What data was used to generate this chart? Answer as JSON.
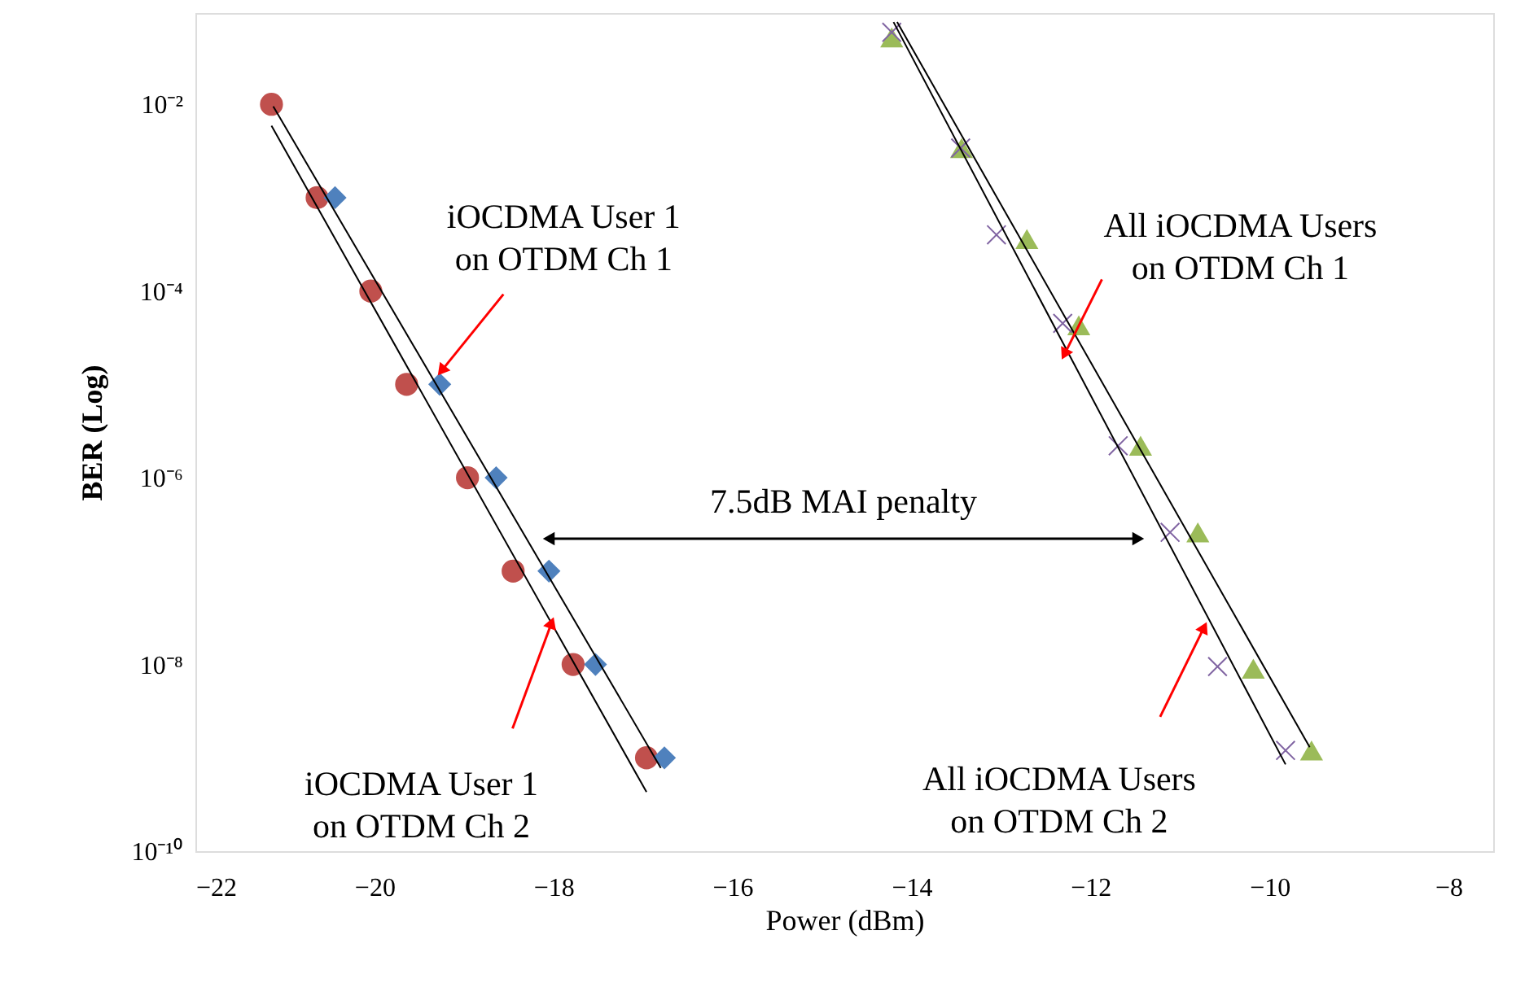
{
  "chart_data": {
    "type": "scatter",
    "xlabel": "Power (dBm)",
    "ylabel": "BER (Log)",
    "xlim": [
      -22,
      -7.5
    ],
    "xticks": [
      -22,
      -20,
      -18,
      -16,
      -14,
      -12,
      -10,
      -8
    ],
    "ylim": [
      1e-10,
      0.095
    ],
    "log": "y",
    "yticks": [
      {
        "value": 0.01,
        "label": "10⁻²"
      },
      {
        "value": 0.0001,
        "label": "10⁻⁴"
      },
      {
        "value": 1e-06,
        "label": "10⁻⁶"
      },
      {
        "value": 1e-08,
        "label": "10⁻⁸"
      },
      {
        "value": 1e-10,
        "label": "10⁻¹⁰"
      }
    ],
    "grid": false,
    "series": [
      {
        "marker": "circle",
        "color": "#c0504d",
        "x": [
          -21.15,
          -20.64,
          -20.04,
          -19.64,
          -18.96,
          -18.45,
          -17.78,
          -16.96
        ],
        "values": [
          0.01,
          0.001,
          0.0001,
          1e-05,
          1e-06,
          1e-07,
          1e-08,
          1e-09
        ]
      },
      {
        "marker": "diamond",
        "color": "#4f81bd",
        "x": [
          -20.44,
          -19.27,
          -18.64,
          -18.05,
          -17.53,
          -16.76
        ],
        "values": [
          0.001,
          1e-05,
          1e-06,
          1e-07,
          1e-08,
          1e-09
        ]
      },
      {
        "marker": "triangle",
        "color": "#9bbb59",
        "x": [
          -14.22,
          -13.44,
          -12.71,
          -12.13,
          -11.44,
          -10.8,
          -10.18,
          -9.53
        ],
        "values": [
          0.052,
          0.0034,
          0.00036,
          4.3e-05,
          2.2e-06,
          2.6e-07,
          9e-09,
          1.2e-09
        ]
      },
      {
        "marker": "cross",
        "color": "#8064a2",
        "x": [
          -14.22,
          -13.45,
          -13.05,
          -12.31,
          -11.69,
          -11.11,
          -10.58,
          -9.82
        ],
        "values": [
          0.059,
          0.0034,
          0.0004,
          4.5e-05,
          2.2e-06,
          2.6e-07,
          9.5e-09,
          1.2e-09
        ]
      },
      {
        "type": "line",
        "marker": "none",
        "color": "#000000",
        "x": [
          -21.15,
          -16.96
        ],
        "values": [
          0.0059,
          4.3e-10
        ]
      },
      {
        "type": "line",
        "marker": "none",
        "color": "#000000",
        "x": [
          -21.13,
          -16.8
        ],
        "values": [
          0.0095,
          7.8e-10
        ]
      },
      {
        "type": "line",
        "marker": "none",
        "color": "#000000",
        "x": [
          -14.2,
          -9.82
        ],
        "values": [
          0.076,
          8.5e-10
        ]
      },
      {
        "type": "line",
        "marker": "none",
        "color": "#000000",
        "x": [
          -14.16,
          -9.55
        ],
        "values": [
          0.076,
          1.3e-09
        ]
      }
    ],
    "annotations": [
      {
        "text": "iOCDMA User 1\non OTDM Ch 1",
        "x": -19.25,
        "y": 1.4e-05
      },
      {
        "text": "iOCDMA User 1\non OTDM Ch 2",
        "x": -18.02,
        "y": 2.8e-08
      },
      {
        "text": "All iOCDMA Users\non OTDM Ch 1",
        "x": -12.29,
        "y": 2.1e-05
      },
      {
        "text": "All iOCDMA Users\non OTDM Ch 2",
        "x": -10.73,
        "y": 2.5e-08
      },
      "7.5dB  MAI penalty"
    ]
  }
}
